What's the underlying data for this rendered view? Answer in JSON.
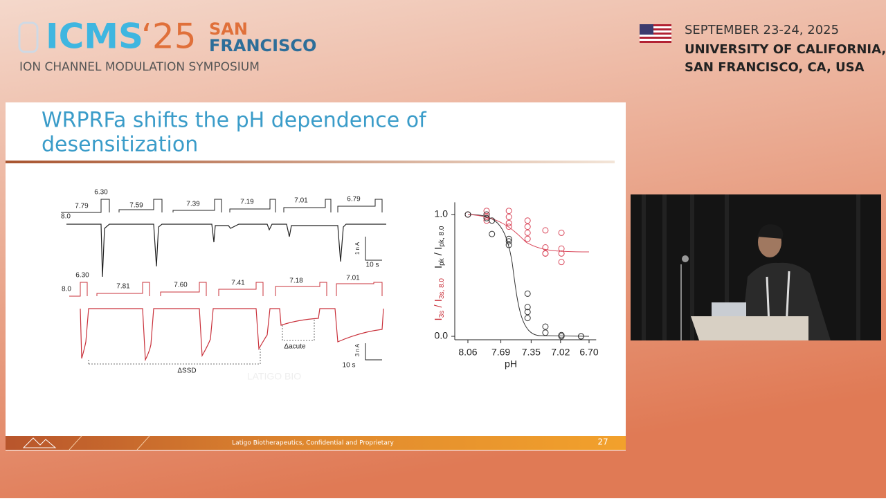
{
  "header": {
    "logo_main": "ICMS",
    "logo_year": "‘25",
    "logo_city": [
      "SAN",
      "FRANCISCO"
    ],
    "subtitle": "ION CHANNEL MODULATION SYMPOSIUM",
    "date": "SEPTEMBER 23-24, 2025",
    "venue": [
      "UNIVERSITY OF CALIFORNIA,",
      "SAN FRANCISCO, CA, USA"
    ]
  },
  "slide": {
    "title": [
      "WRPRFa shifts the pH dependence of",
      "desensitization"
    ],
    "traces_top": {
      "labels": [
        "6.30",
        "7.79",
        "8.0",
        "7.59",
        "7.39",
        "7.19",
        "7.01",
        "6.79"
      ],
      "scale_current": "1 n A",
      "scale_time": "10 s"
    },
    "traces_bottom": {
      "labels": [
        "6.30",
        "8.0",
        "7.81",
        "7.60",
        "7.41",
        "7.18",
        "7.01"
      ],
      "delta_acute": "Δacute",
      "delta_ssd": "ΔSSD",
      "scale_current": "3 n A",
      "scale_time": "10 s",
      "watermark": "LATIGO BIO"
    },
    "footer": "Latigo Biotherapeutics, Confidential and Proprietary",
    "page_number": "27"
  },
  "chart_data": {
    "type": "scatter",
    "x_label": "pH",
    "y_label_red": [
      "I",
      "3s",
      " / I",
      "3s, 8.0"
    ],
    "y_label_black": [
      "I",
      "pk",
      " / I",
      "pk, 8.0"
    ],
    "xlim": [
      8.16,
      6.62
    ],
    "xticks": [
      8.06,
      7.69,
      7.35,
      7.02,
      {
        "value": 6.7,
        "label": "6.70"
      }
    ],
    "ylim": [
      -0.03,
      1.1
    ],
    "yticks": [
      {
        "value": 0,
        "label": "0.0"
      },
      {
        "value": 1,
        "label": "1.0"
      }
    ],
    "series": [
      {
        "color": "#d9475a",
        "x": [
          8.06,
          8.06,
          7.85,
          7.85,
          7.85,
          7.85,
          7.6,
          7.6,
          7.6,
          7.6,
          7.39,
          7.39,
          7.39,
          7.39,
          7.19,
          7.19,
          7.19,
          7.19,
          7.01,
          7.01,
          7.01,
          7.01
        ],
        "values": [
          1.0,
          1.0,
          1.03,
          1.0,
          0.98,
          0.95,
          1.03,
          0.98,
          0.93,
          0.9,
          0.95,
          0.9,
          0.85,
          0.8,
          0.87,
          0.73,
          0.68,
          0.68,
          0.85,
          0.72,
          0.68,
          0.61
        ]
      },
      {
        "color": "#333333",
        "x": [
          8.06,
          8.06,
          7.85,
          7.85,
          7.79,
          7.79,
          7.6,
          7.6,
          7.6,
          7.39,
          7.39,
          7.39,
          7.39,
          7.19,
          7.19,
          7.01,
          7.01,
          6.79,
          6.79
        ],
        "values": [
          1.0,
          1.0,
          1.0,
          0.97,
          0.95,
          0.84,
          0.8,
          0.78,
          0.75,
          0.35,
          0.24,
          0.2,
          0.15,
          0.08,
          0.03,
          0.01,
          0.0,
          0.0,
          0.0
        ]
      }
    ]
  }
}
